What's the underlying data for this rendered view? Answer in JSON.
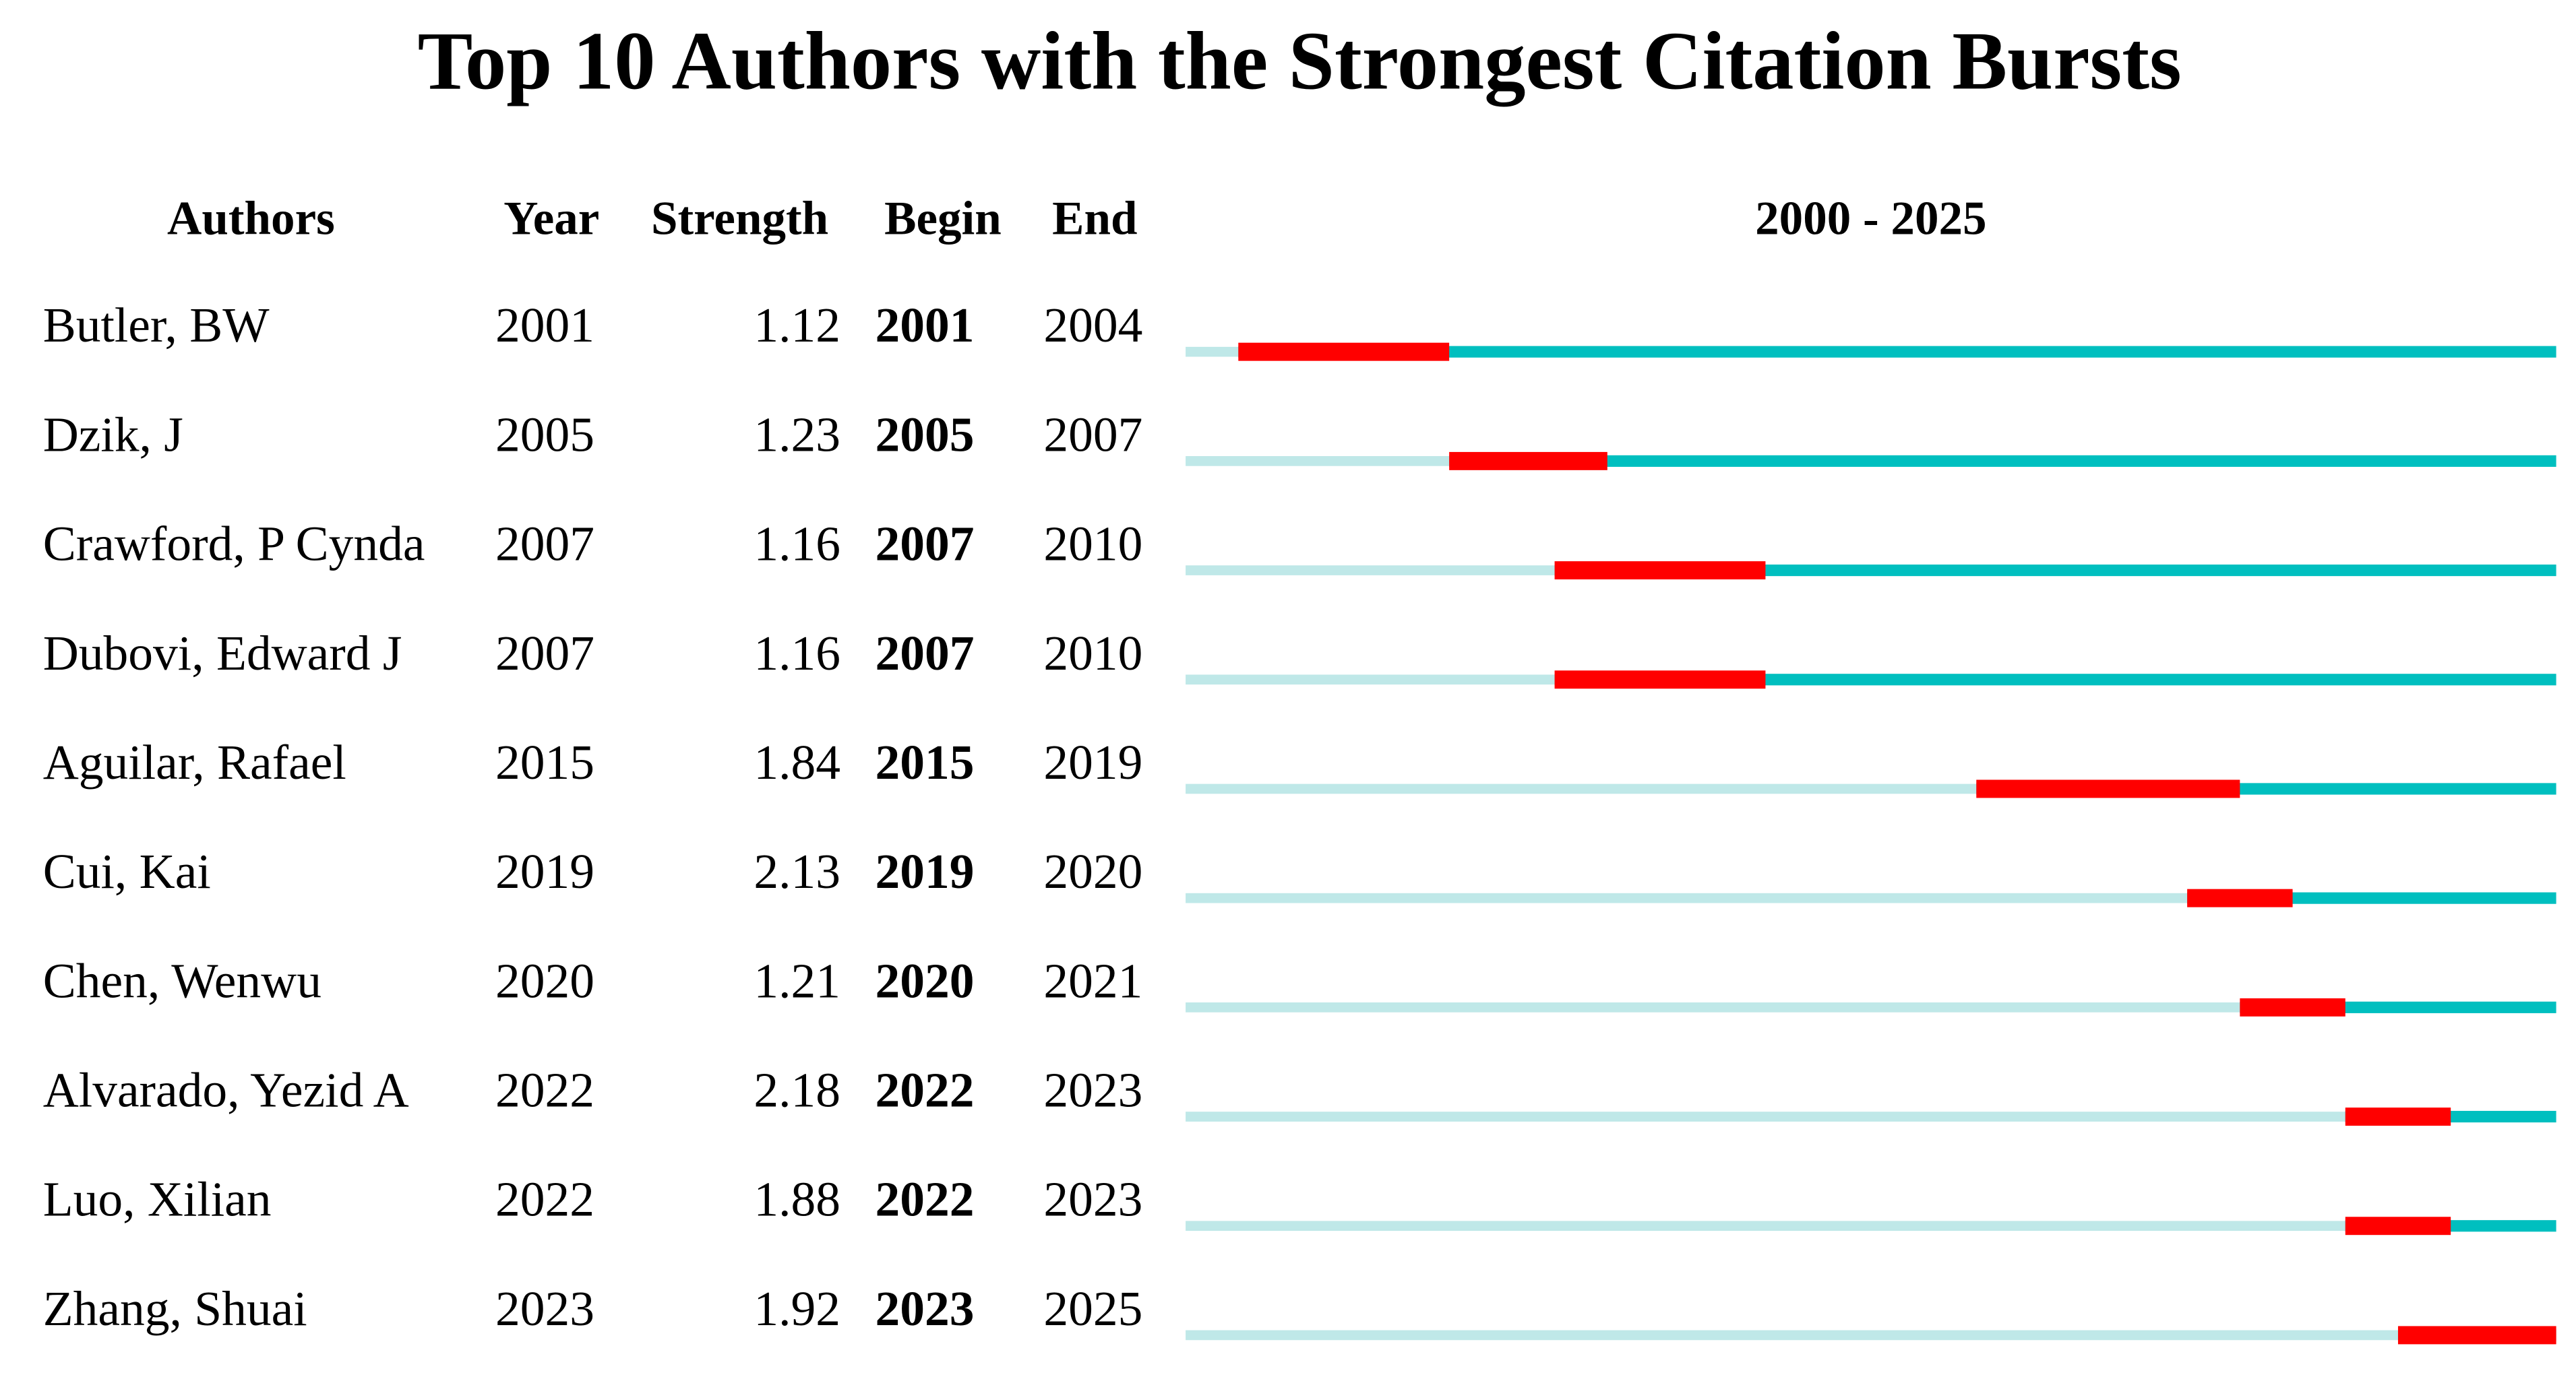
{
  "chart_data": {
    "type": "burst",
    "title": "Top 10 Authors with the Strongest Citation Bursts",
    "columns": [
      "Authors",
      "Year",
      "Strength",
      "Begin",
      "End"
    ],
    "range_label": "2000 - 2025",
    "xlim": [
      2000,
      2025
    ],
    "colors": {
      "before": "#bfe8e8",
      "after": "#00bfbf",
      "burst": "#ff0000"
    },
    "rows": [
      {
        "author": "Butler, BW",
        "year": 2001,
        "strength": 1.12,
        "begin": 2001,
        "end": 2004
      },
      {
        "author": "Dzik, J",
        "year": 2005,
        "strength": 1.23,
        "begin": 2005,
        "end": 2007
      },
      {
        "author": "Crawford, P Cynda",
        "year": 2007,
        "strength": 1.16,
        "begin": 2007,
        "end": 2010
      },
      {
        "author": "Dubovi, Edward J",
        "year": 2007,
        "strength": 1.16,
        "begin": 2007,
        "end": 2010
      },
      {
        "author": "Aguilar, Rafael",
        "year": 2015,
        "strength": 1.84,
        "begin": 2015,
        "end": 2019
      },
      {
        "author": "Cui, Kai",
        "year": 2019,
        "strength": 2.13,
        "begin": 2019,
        "end": 2020
      },
      {
        "author": "Chen, Wenwu",
        "year": 2020,
        "strength": 1.21,
        "begin": 2020,
        "end": 2021
      },
      {
        "author": "Alvarado, Yezid A",
        "year": 2022,
        "strength": 2.18,
        "begin": 2022,
        "end": 2023
      },
      {
        "author": "Luo, Xilian",
        "year": 2022,
        "strength": 1.88,
        "begin": 2022,
        "end": 2023
      },
      {
        "author": "Zhang, Shuai",
        "year": 2023,
        "strength": 1.92,
        "begin": 2023,
        "end": 2025
      }
    ]
  }
}
